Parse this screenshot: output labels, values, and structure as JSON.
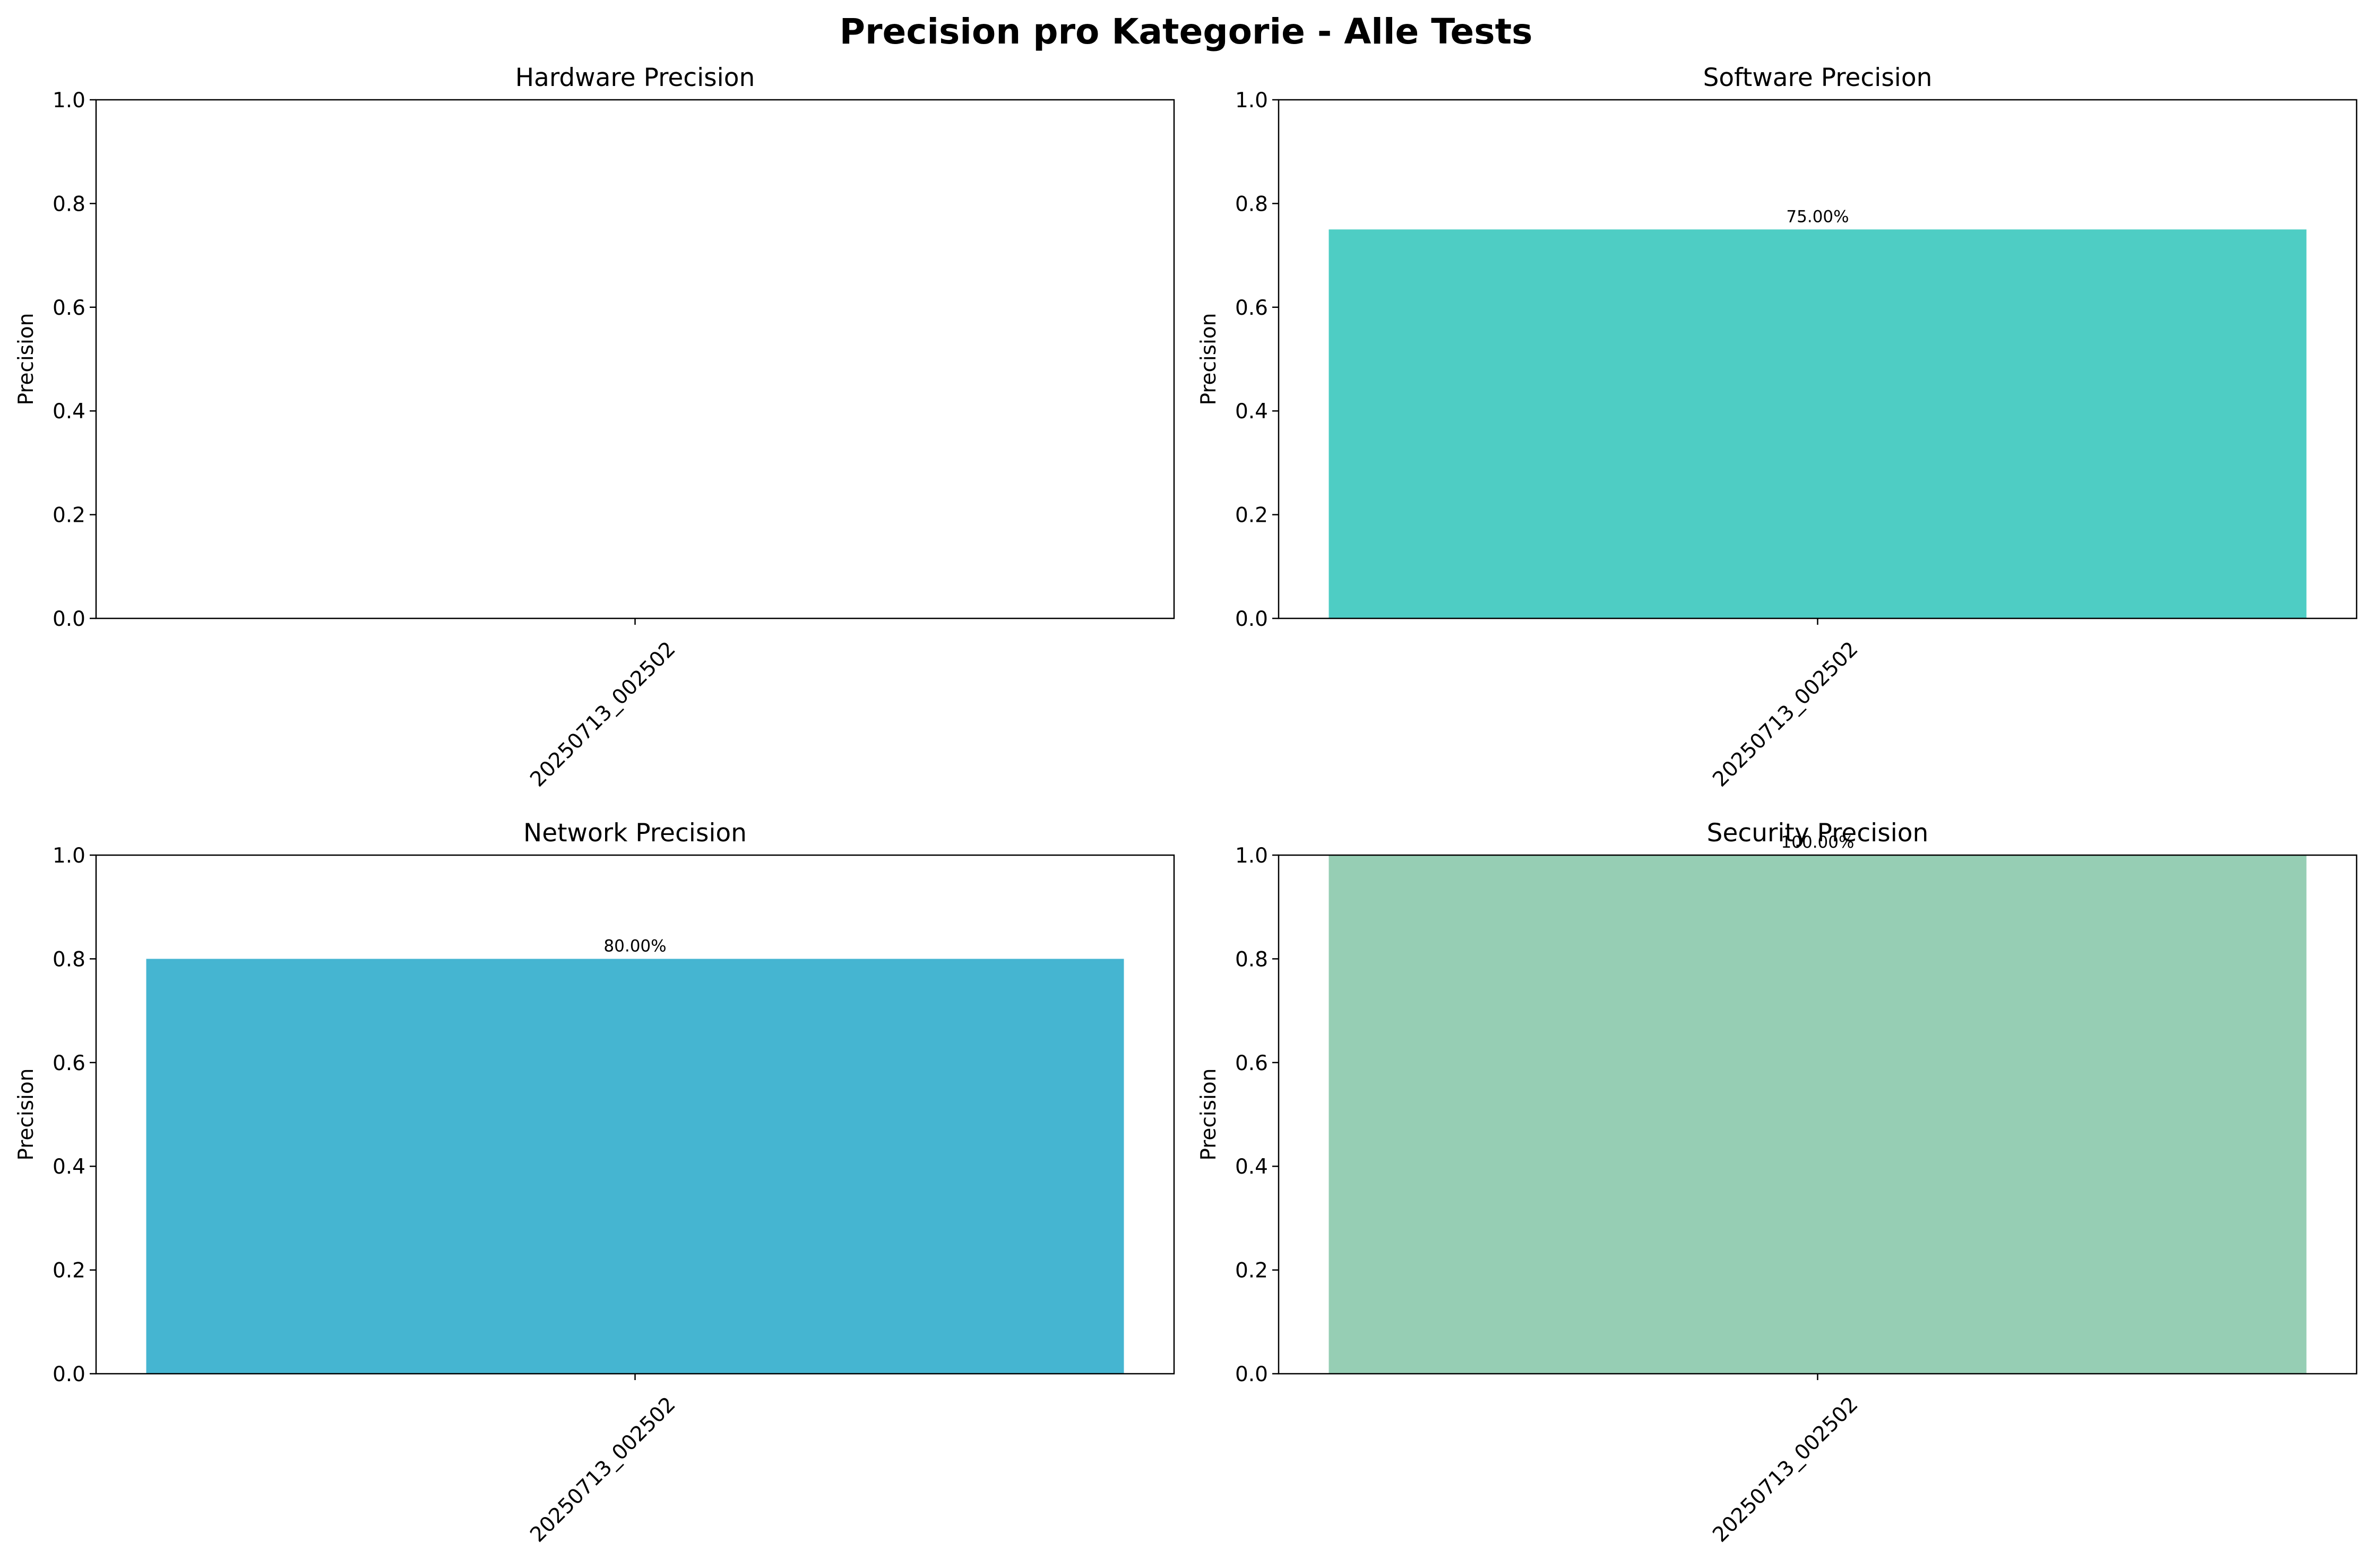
{
  "figure": {
    "title": "Precision pro Kategorie - Alle Tests"
  },
  "chart_data": [
    {
      "type": "bar",
      "title": "Hardware Precision",
      "xlabel": "",
      "ylabel": "Precision",
      "categories": [
        "20250713_002502"
      ],
      "values": [
        0
      ],
      "value_labels": [
        ""
      ],
      "color": "#FF6B6B",
      "ylim": [
        0,
        1
      ],
      "yticks": [
        "0.0",
        "0.2",
        "0.4",
        "0.6",
        "0.8",
        "1.0"
      ],
      "grid": false
    },
    {
      "type": "bar",
      "title": "Software Precision",
      "xlabel": "",
      "ylabel": "Precision",
      "categories": [
        "20250713_002502"
      ],
      "values": [
        0.75
      ],
      "value_labels": [
        "75.00%"
      ],
      "color": "#4ECDC4",
      "ylim": [
        0,
        1
      ],
      "yticks": [
        "0.0",
        "0.2",
        "0.4",
        "0.6",
        "0.8",
        "1.0"
      ],
      "grid": false
    },
    {
      "type": "bar",
      "title": "Network Precision",
      "xlabel": "",
      "ylabel": "Precision",
      "categories": [
        "20250713_002502"
      ],
      "values": [
        0.8
      ],
      "value_labels": [
        "80.00%"
      ],
      "color": "#45B5D1",
      "ylim": [
        0,
        1
      ],
      "yticks": [
        "0.0",
        "0.2",
        "0.4",
        "0.6",
        "0.8",
        "1.0"
      ],
      "grid": false
    },
    {
      "type": "bar",
      "title": "Security Precision",
      "xlabel": "",
      "ylabel": "Precision",
      "categories": [
        "20250713_002502"
      ],
      "values": [
        1.0
      ],
      "value_labels": [
        "100.00%"
      ],
      "color": "#96CEB4",
      "ylim": [
        0,
        1
      ],
      "yticks": [
        "0.0",
        "0.2",
        "0.4",
        "0.6",
        "0.8",
        "1.0"
      ],
      "grid": false
    }
  ]
}
